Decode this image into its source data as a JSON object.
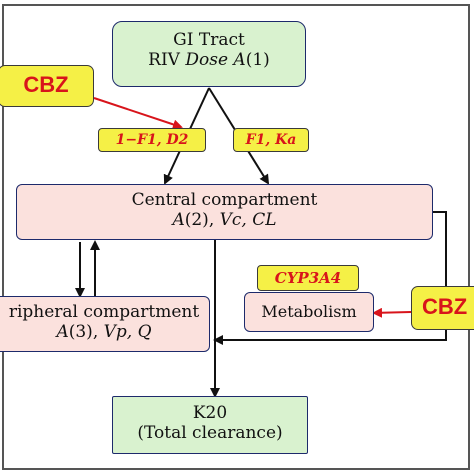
{
  "gi_tract": {
    "line1": "GI Tract",
    "line2_prefix": "RIV ",
    "line2_dose": "Dose A",
    "line2_suffix": "(1)"
  },
  "cbz_label": "CBZ",
  "rates": {
    "left": "1−F1, D2",
    "right": "F1, Ka"
  },
  "central": {
    "title": "Central compartment",
    "line2_a": "A",
    "line2_b": "(2), ",
    "line2_c": "Vc, CL"
  },
  "peripheral": {
    "title": "ripheral compartment",
    "line2_a": "A",
    "line2_b": "(3), ",
    "line2_c": "Vp, Q"
  },
  "enzyme": "CYP3A4",
  "metabolism": "Metabolism",
  "cbz_right": "CBZ",
  "k20": {
    "line1": "K20",
    "line2": "(Total clearance)"
  },
  "colors": {
    "box_green": "#d9f2cf",
    "box_pink": "#fbe1dd",
    "highlight": "#f5f046",
    "text_red": "#d8141b",
    "arrow_red": "#d8141b",
    "border": "#1d2a6b"
  }
}
